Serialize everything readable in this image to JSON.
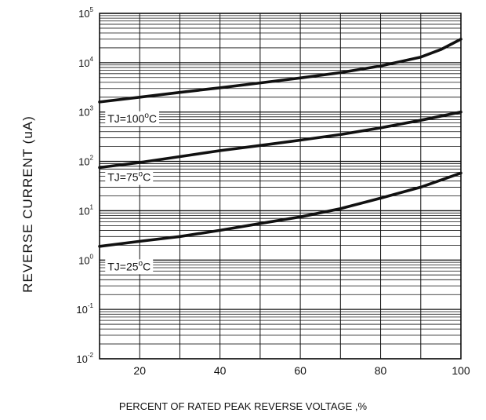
{
  "chart_data": {
    "type": "line",
    "xlabel": "PERCENT OF RATED PEAK REVERSE VOLTAGE ,%",
    "ylabel": "REVERSE CURRENT (uA)",
    "xlim": [
      10,
      100
    ],
    "ylim": [
      0.01,
      100000
    ],
    "yscale": "log",
    "grid": true,
    "x_ticks": [
      "20",
      "40",
      "60",
      "80",
      "100"
    ],
    "x_tick_values": [
      20,
      40,
      60,
      80,
      100
    ],
    "y_ticks": [
      {
        "base": "10",
        "exp": "5",
        "value": 100000
      },
      {
        "base": "10",
        "exp": "4",
        "value": 10000
      },
      {
        "base": "10",
        "exp": "3",
        "value": 1000
      },
      {
        "base": "10",
        "exp": "2",
        "value": 100
      },
      {
        "base": "10",
        "exp": "1",
        "value": 10
      },
      {
        "base": "10",
        "exp": "0",
        "value": 1
      },
      {
        "base": "10",
        "exp": "-1",
        "value": 0.1
      },
      {
        "base": "10",
        "exp": "-2",
        "value": 0.01
      }
    ],
    "series": [
      {
        "name": "TJ=100°C",
        "label": {
          "main": "TJ=100",
          "sup": "o",
          "unit": "C"
        },
        "label_anchor": {
          "x": 12,
          "y": 620
        },
        "x": [
          10,
          20,
          30,
          40,
          50,
          60,
          70,
          80,
          90,
          95,
          100
        ],
        "y": [
          1600,
          2000,
          2500,
          3100,
          3900,
          4900,
          6300,
          8600,
          13000,
          18500,
          30000
        ]
      },
      {
        "name": "TJ=75°C",
        "label": {
          "main": "TJ=75",
          "sup": "o",
          "unit": "C"
        },
        "label_anchor": {
          "x": 12,
          "y": 40
        },
        "x": [
          10,
          20,
          30,
          40,
          50,
          60,
          70,
          80,
          90,
          100
        ],
        "y": [
          75,
          95,
          125,
          165,
          210,
          270,
          350,
          480,
          680,
          1000
        ]
      },
      {
        "name": "TJ=25°C",
        "label": {
          "main": "TJ=25",
          "sup": "o",
          "unit": "C"
        },
        "label_anchor": {
          "x": 12,
          "y": 0.62
        },
        "x": [
          10,
          20,
          30,
          40,
          50,
          60,
          70,
          80,
          90,
          100
        ],
        "y": [
          1.9,
          2.4,
          3.0,
          4.0,
          5.5,
          7.5,
          11,
          18,
          30,
          58
        ]
      }
    ]
  }
}
